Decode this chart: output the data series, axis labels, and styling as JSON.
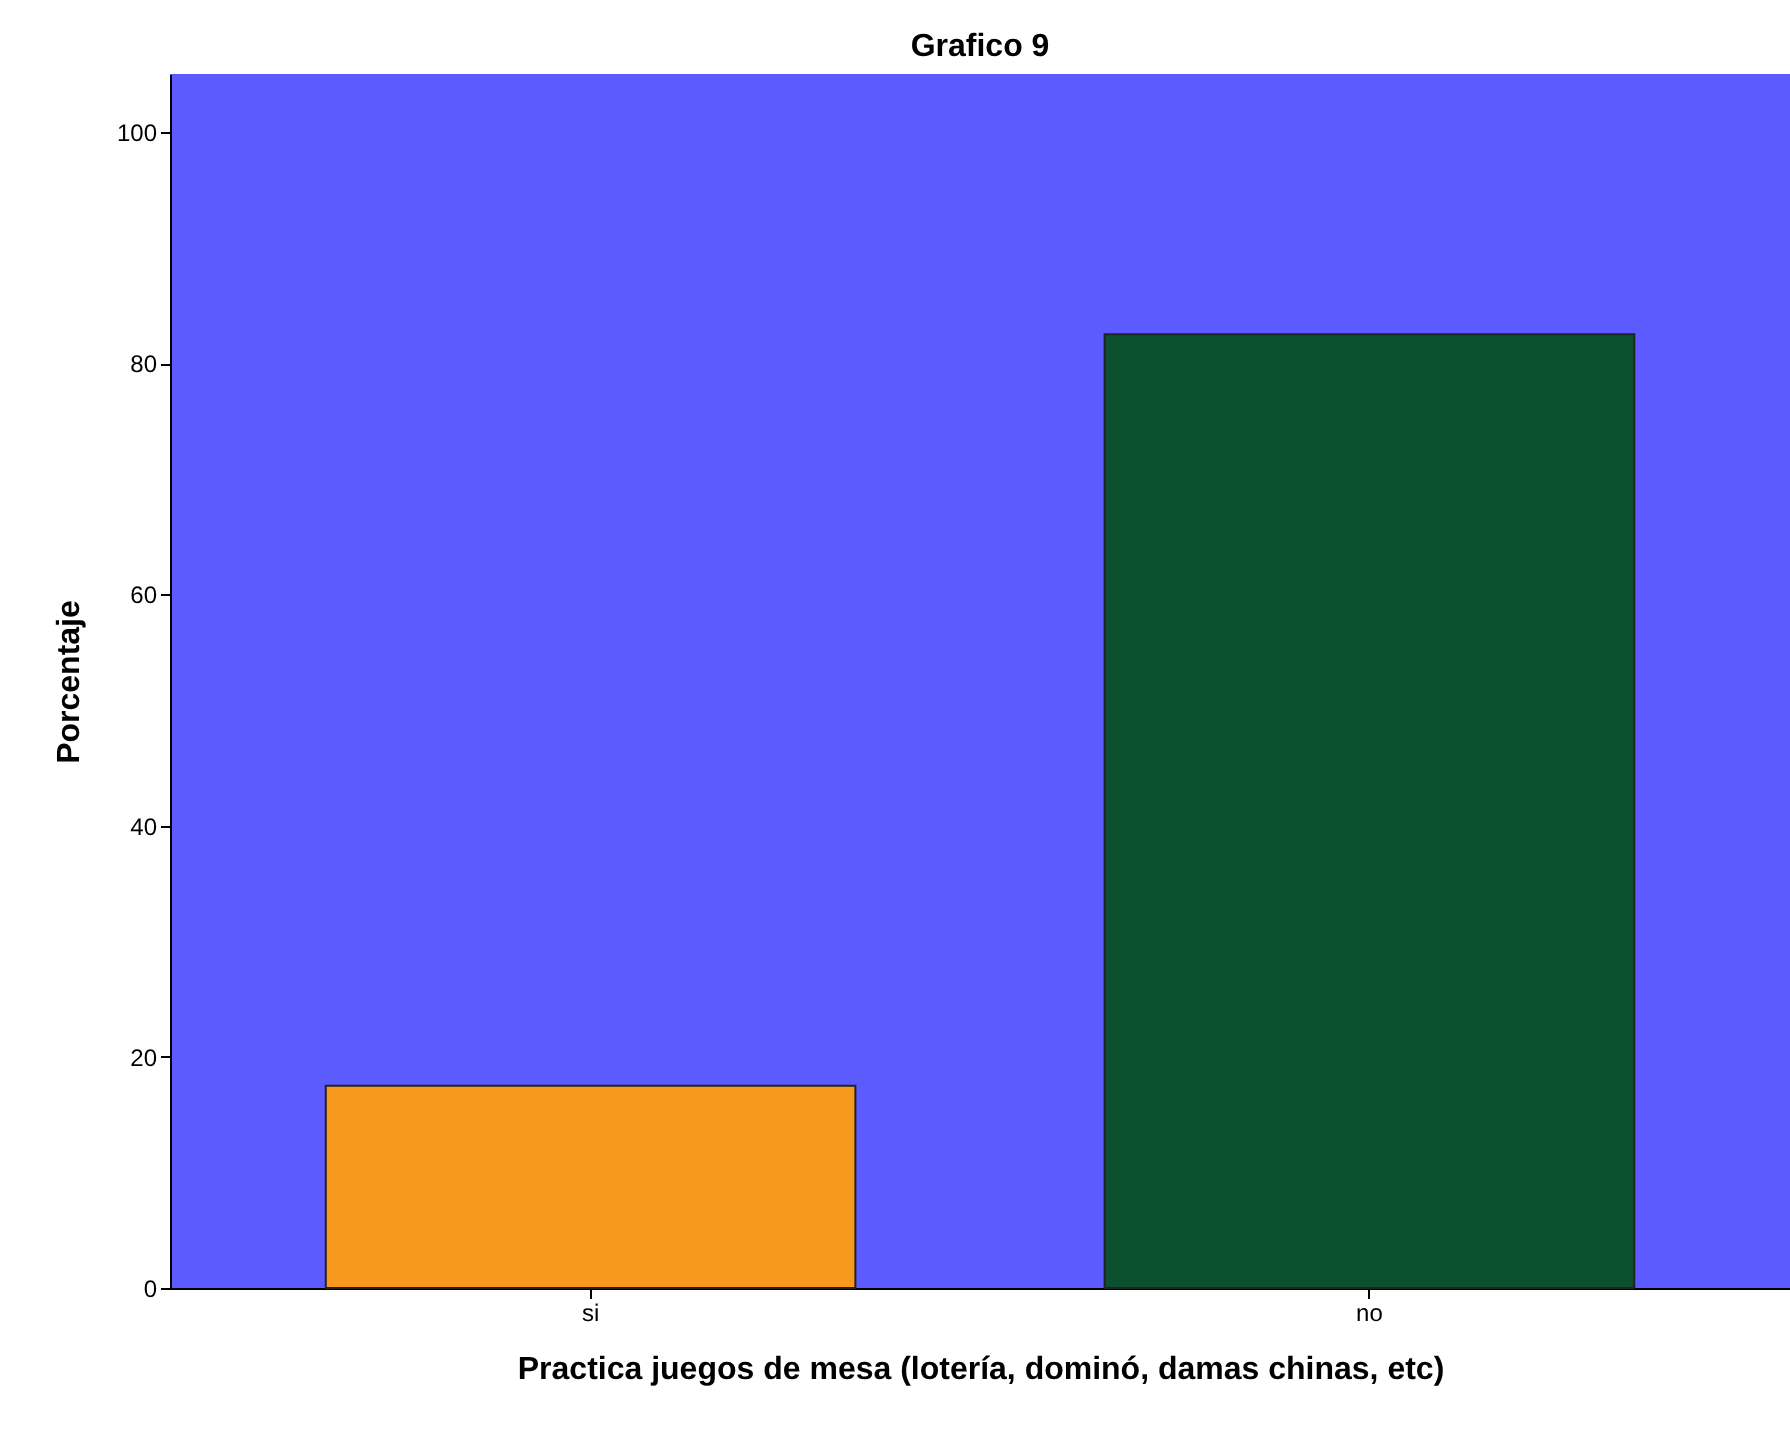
{
  "chart_data": {
    "type": "bar",
    "title": "Grafico 9",
    "xlabel": "Practica juegos de mesa (lotería, dominó, damas chinas, etc)",
    "ylabel": "Porcentaje",
    "categories": [
      "si",
      "no"
    ],
    "values": [
      17.5,
      82.5
    ],
    "colors": [
      "#f7991c",
      "#0b5130"
    ],
    "ylim": [
      0,
      105
    ],
    "yticks": [
      0,
      20,
      40,
      60,
      80,
      100
    ],
    "grid": false,
    "legend": false
  }
}
